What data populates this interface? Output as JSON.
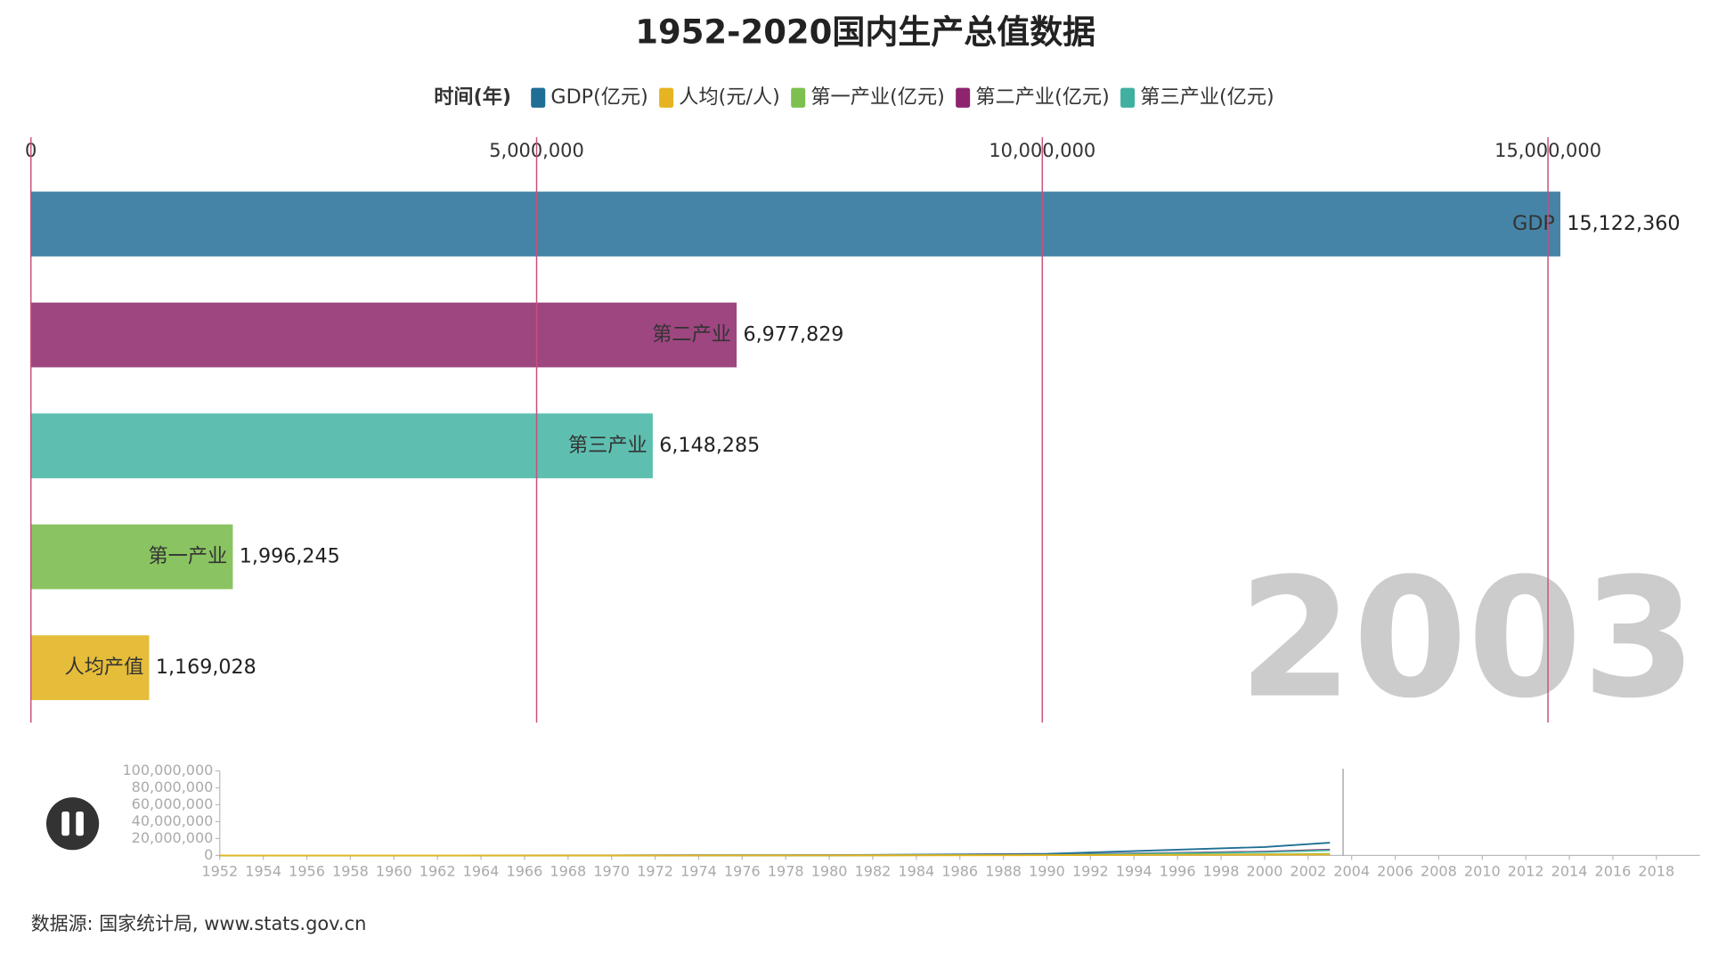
{
  "chart_data": [
    {
      "type": "bar",
      "orientation": "horizontal",
      "title": "1952-2020国内生产总值数据",
      "legend_title": "时间(年)",
      "legend": [
        {
          "name": "GDP(亿元)",
          "color": "#1f6e94"
        },
        {
          "name": "人均(元/人)",
          "color": "#e6b422"
        },
        {
          "name": "第一产业(亿元)",
          "color": "#7cc050"
        },
        {
          "name": "第二产业(亿元)",
          "color": "#8e2470"
        },
        {
          "name": "第三产业(亿元)",
          "color": "#40b0a0"
        }
      ],
      "categories": [
        "GDP",
        "第二产业",
        "第三产业",
        "第一产业",
        "人均产值"
      ],
      "values": [
        15122360,
        6977829,
        6148285,
        1996245,
        1169028
      ],
      "value_labels": [
        "15,122,360",
        "6,977,829",
        "6,148,285",
        "1,996,245",
        "1,169,028"
      ],
      "colors": [
        "#4584a6",
        "#9e4680",
        "#5ebfb0",
        "#8ac462",
        "#e6bd3a"
      ],
      "xlim": [
        0,
        16600000
      ],
      "xticks": [
        {
          "value": 0,
          "label": "0"
        },
        {
          "value": 5000000,
          "label": "5,000,000"
        },
        {
          "value": 10000000,
          "label": "10,000,000"
        },
        {
          "value": 15000000,
          "label": "15,000,000"
        }
      ],
      "grid": true,
      "annotation": "2003",
      "source": "数据源: 国家统计局, www.stats.gov.cn"
    },
    {
      "type": "line",
      "x": [
        1952,
        1960,
        1970,
        1980,
        1990,
        1995,
        2000,
        2003
      ],
      "series": [
        {
          "color": "#1f6e94",
          "values": [
            0,
            0,
            100000,
            400000,
            1900000,
            6000000,
            10000000,
            15122360
          ]
        },
        {
          "color": "#8e2470",
          "values": [
            0,
            0,
            50000,
            200000,
            800000,
            2800000,
            4600000,
            6977829
          ]
        },
        {
          "color": "#40b0a0",
          "values": [
            0,
            0,
            30000,
            150000,
            600000,
            2300000,
            4000000,
            6148285
          ]
        },
        {
          "color": "#7cc050",
          "values": [
            0,
            0,
            20000,
            60000,
            500000,
            900000,
            1400000,
            1996245
          ]
        },
        {
          "color": "#e6b422",
          "values": [
            0,
            0,
            10000,
            50000,
            300000,
            600000,
            900000,
            1169028
          ]
        }
      ],
      "xlim": [
        1952,
        2020
      ],
      "xticks": [
        1952,
        1954,
        1956,
        1958,
        1960,
        1962,
        1964,
        1966,
        1968,
        1970,
        1972,
        1974,
        1976,
        1978,
        1980,
        1982,
        1984,
        1986,
        1988,
        1990,
        1992,
        1994,
        1996,
        1998,
        2000,
        2002,
        2004,
        2006,
        2008,
        2010,
        2012,
        2014,
        2016,
        2018
      ],
      "ylim": [
        0,
        100000000
      ],
      "yticks": [
        0,
        {
          "value": 20000000,
          "label": "20,000,000"
        },
        {
          "value": 40000000,
          "label": "40,000,000"
        },
        {
          "value": 60000000,
          "label": "60,000,000"
        },
        {
          "value": 80000000,
          "label": "80,000,000"
        },
        {
          "value": 100000000,
          "label": "100,000,000"
        }
      ]
    }
  ]
}
